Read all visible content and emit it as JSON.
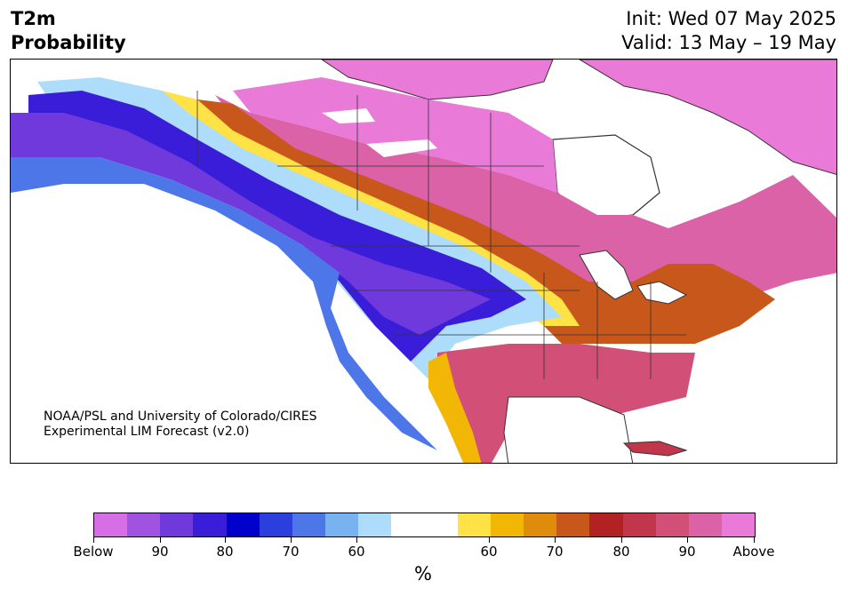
{
  "title": {
    "line1": "T2m",
    "line2": "Probability"
  },
  "dates": {
    "init": "Init: Wed 07 May 2025",
    "valid": "Valid: 13 May – 19 May"
  },
  "credit": {
    "line1": "NOAA/PSL and University of Colorado/CIRES",
    "line2": "Experimental LIM Forecast (v2.0)"
  },
  "colorbar": {
    "unit": "%",
    "colors": [
      "#d66fe6",
      "#a052e0",
      "#7039dc",
      "#3a1dd8",
      "#0000cd",
      "#2a3fdc",
      "#4d77e8",
      "#78b2f1",
      "#aedcfb",
      "#ffffff",
      "#ffffff",
      "#ffe245",
      "#f2b705",
      "#df8b0c",
      "#c7571a",
      "#b22222",
      "#c1364a",
      "#d25078",
      "#dc62a8",
      "#e97ad8"
    ],
    "tick_labels": [
      "Below",
      "90",
      "80",
      "70",
      "60",
      "60",
      "70",
      "80",
      "90",
      "Above"
    ]
  },
  "map": {
    "land_outline": "#333333",
    "probability_colors": {
      "below_high": "#7039dc",
      "below_mid": "#3a1dd8",
      "below_low": "#78b2f1",
      "above_low": "#ffe245",
      "above_mid": "#c7571a",
      "above_high": "#dc62a8",
      "above_max": "#e97ad8"
    }
  }
}
